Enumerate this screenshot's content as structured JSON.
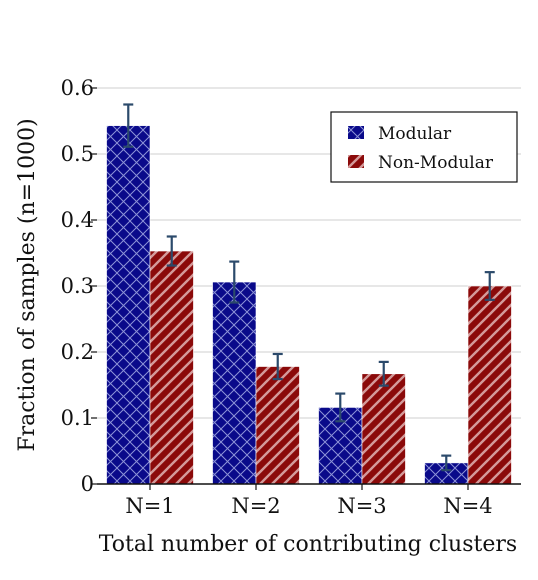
{
  "chart_data": {
    "type": "bar",
    "categories": [
      "N=1",
      "N=2",
      "N=3",
      "N=4"
    ],
    "series": [
      {
        "name": "Modular",
        "color": "#0a0a8a",
        "pattern": "crosshatch",
        "values": [
          0.543,
          0.306,
          0.116,
          0.032
        ],
        "errors": [
          0.032,
          0.031,
          0.021,
          0.011
        ]
      },
      {
        "name": "Non-Modular",
        "color": "#8b0a0a",
        "pattern": "diagonal",
        "values": [
          0.353,
          0.178,
          0.167,
          0.3
        ],
        "errors": [
          0.022,
          0.019,
          0.018,
          0.021
        ]
      }
    ],
    "xlabel": "Total number of contributing clusters",
    "ylabel": "Fraction of samples (n=1000)",
    "ylim": [
      0,
      0.6
    ],
    "yticks": [
      {
        "value": 0,
        "label": "0"
      },
      {
        "value": 0.1,
        "label": "0.1"
      },
      {
        "value": 0.2,
        "label": "0.2"
      },
      {
        "value": 0.3,
        "label": "0.3"
      },
      {
        "value": 0.4,
        "label": "0.4"
      },
      {
        "value": 0.5,
        "label": "0.5"
      },
      {
        "value": 0.6,
        "label": "0.6"
      }
    ],
    "grid": true,
    "legend_position": "top-right"
  }
}
